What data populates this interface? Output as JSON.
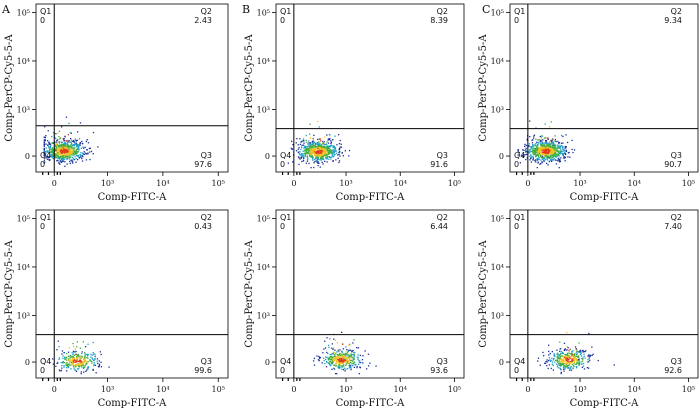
{
  "figure": {
    "panel_letters": [
      "A",
      "B",
      "C"
    ]
  },
  "chart_data": [
    {
      "type": "scatter",
      "panel": "A",
      "row": "top",
      "xlabel": "Comp-FITC-A",
      "ylabel": "Comp-PerCP-Cy5-5-A",
      "xticks": [
        "0",
        "10³",
        "10⁴",
        "10⁵"
      ],
      "yticks": [
        "0",
        "10³",
        "10⁴",
        "10⁵"
      ],
      "xlim": [
        -200,
        150000
      ],
      "ylim": [
        -200,
        150000
      ],
      "scale": "biexponential",
      "quadrants": [
        {
          "name": "Q1",
          "value": "0"
        },
        {
          "name": "Q2",
          "value": "2.43"
        },
        {
          "name": "Q3",
          "value": "97.6"
        },
        {
          "name": "Q4",
          "value": "0"
        }
      ],
      "gate": {
        "x": 0,
        "y": 460
      },
      "population": {
        "center": [
          160,
          120
        ],
        "n": 700
      }
    },
    {
      "type": "scatter",
      "panel": "B",
      "row": "top",
      "xlabel": "Comp-FITC-A",
      "ylabel": "Comp-PerCP-Cy5-5-A",
      "xticks": [
        "0",
        "10³",
        "10⁴",
        "10⁵"
      ],
      "yticks": [
        "0",
        "10³",
        "10⁴",
        "10⁵"
      ],
      "xlim": [
        -200,
        150000
      ],
      "ylim": [
        -200,
        150000
      ],
      "scale": "biexponential",
      "quadrants": [
        {
          "name": "Q1",
          "value": "0"
        },
        {
          "name": "Q2",
          "value": "8.39"
        },
        {
          "name": "Q3",
          "value": "91.6"
        },
        {
          "name": "Q4",
          "value": "0"
        }
      ],
      "gate": {
        "x": 0,
        "y": 400
      },
      "population": {
        "center": [
          300,
          110
        ],
        "n": 700
      }
    },
    {
      "type": "scatter",
      "panel": "C",
      "row": "top",
      "xlabel": "Comp-FITC-A",
      "ylabel": "Comp-PerCP-Cy5-5-A",
      "xticks": [
        "0",
        "10³",
        "10⁴",
        "10⁵"
      ],
      "yticks": [
        "0",
        "10³",
        "10⁴",
        "10⁵"
      ],
      "xlim": [
        -200,
        150000
      ],
      "ylim": [
        -200,
        150000
      ],
      "scale": "biexponential",
      "quadrants": [
        {
          "name": "Q1",
          "value": "0"
        },
        {
          "name": "Q2",
          "value": "9.34"
        },
        {
          "name": "Q3",
          "value": "90.7"
        },
        {
          "name": "Q4",
          "value": "0"
        }
      ],
      "gate": {
        "x": 0,
        "y": 400
      },
      "population": {
        "center": [
          230,
          120
        ],
        "n": 700
      }
    },
    {
      "type": "scatter",
      "panel": "A",
      "row": "bottom",
      "xlabel": "Comp-FITC-A",
      "ylabel": "Comp-PerCP-Cy5-5-A",
      "xticks": [
        "0",
        "10³",
        "10⁴",
        "10⁵"
      ],
      "yticks": [
        "0",
        "10³",
        "10⁴",
        "10⁵"
      ],
      "xlim": [
        -200,
        150000
      ],
      "ylim": [
        -200,
        150000
      ],
      "scale": "biexponential",
      "quadrants": [
        {
          "name": "Q1",
          "value": "0"
        },
        {
          "name": "Q2",
          "value": "0.43"
        },
        {
          "name": "Q3",
          "value": "99.6"
        },
        {
          "name": "Q4",
          "value": "0"
        }
      ],
      "gate": {
        "x": 0,
        "y": 400
      },
      "population": {
        "center": [
          280,
          30
        ],
        "n": 300
      }
    },
    {
      "type": "scatter",
      "panel": "B",
      "row": "bottom",
      "xlabel": "Comp-FITC-A",
      "ylabel": "Comp-PerCP-Cy5-5-A",
      "xticks": [
        "0",
        "10³",
        "10⁴",
        "10⁵"
      ],
      "yticks": [
        "0",
        "10³",
        "10⁴",
        "10⁵"
      ],
      "xlim": [
        -200,
        150000
      ],
      "ylim": [
        -200,
        150000
      ],
      "scale": "biexponential",
      "quadrants": [
        {
          "name": "Q1",
          "value": "0"
        },
        {
          "name": "Q2",
          "value": "6.44"
        },
        {
          "name": "Q3",
          "value": "93.6"
        },
        {
          "name": "Q4",
          "value": "0"
        }
      ],
      "gate": {
        "x": 0,
        "y": 400
      },
      "population": {
        "center": [
          800,
          60
        ],
        "n": 380
      }
    },
    {
      "type": "scatter",
      "panel": "C",
      "row": "bottom",
      "xlabel": "Comp-FITC-A",
      "ylabel": "Comp-PerCP-Cy5-5-A",
      "xticks": [
        "0",
        "10³",
        "10⁴",
        "10⁵"
      ],
      "yticks": [
        "0",
        "10³",
        "10⁴",
        "10⁵"
      ],
      "xlim": [
        -200,
        150000
      ],
      "ylim": [
        -200,
        150000
      ],
      "scale": "biexponential",
      "quadrants": [
        {
          "name": "Q1",
          "value": "0"
        },
        {
          "name": "Q2",
          "value": "7.40"
        },
        {
          "name": "Q3",
          "value": "92.6"
        },
        {
          "name": "Q4",
          "value": "0"
        }
      ],
      "gate": {
        "x": 0,
        "y": 400
      },
      "population": {
        "center": [
          600,
          60
        ],
        "n": 380
      }
    }
  ]
}
